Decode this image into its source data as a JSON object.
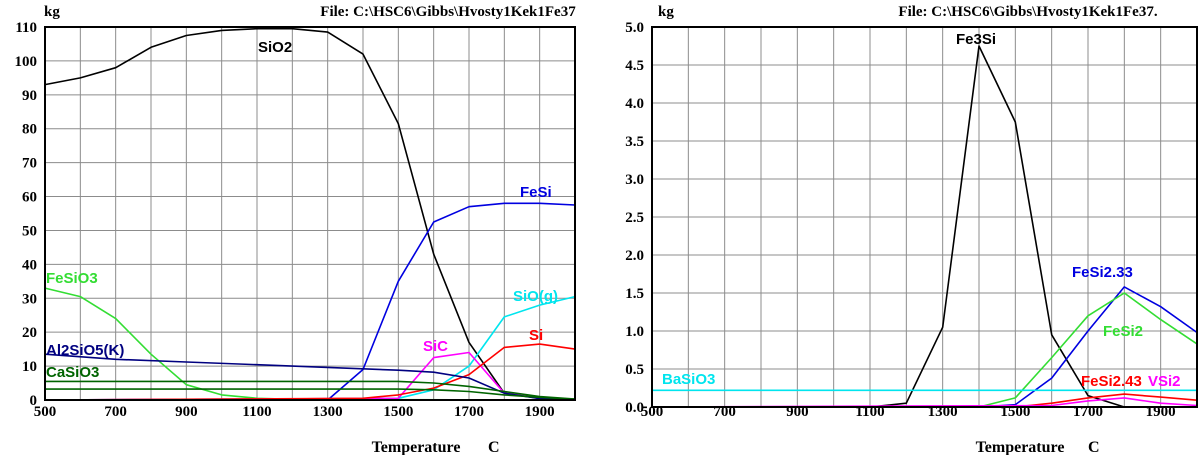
{
  "chart_data": [
    {
      "type": "line",
      "ylabel": "kg",
      "file_label": "File: C:\\HSC6\\Gibbs\\Hvosty1Kek1Fe37",
      "xlabel": "Temperature",
      "xunit": "C",
      "xlim": [
        500,
        2000
      ],
      "ylim": [
        0,
        110
      ],
      "xticks": [
        500,
        700,
        900,
        1100,
        1300,
        1500,
        1700,
        1900
      ],
      "yticks": [
        0,
        10,
        20,
        30,
        40,
        50,
        60,
        70,
        80,
        90,
        100,
        110
      ],
      "xgrid": [
        500,
        600,
        700,
        800,
        900,
        1000,
        1100,
        1200,
        1300,
        1400,
        1500,
        1600,
        1700,
        1800,
        1900,
        2000
      ],
      "grid": true,
      "series": [
        {
          "name": "SiO2",
          "color": "#000000",
          "x": [
            500,
            600,
            700,
            800,
            900,
            1000,
            1100,
            1200,
            1300,
            1400,
            1500,
            1600,
            1700,
            1800,
            1900,
            2000
          ],
          "y": [
            93,
            95,
            98,
            104,
            107.5,
            109,
            109.5,
            109.5,
            108.5,
            102,
            81.5,
            43,
            17,
            2,
            0.5,
            0.3
          ]
        },
        {
          "name": "FeSi",
          "color": "#0000e0",
          "x": [
            500,
            1300,
            1400,
            1500,
            1600,
            1700,
            1800,
            1900,
            2000
          ],
          "y": [
            0,
            0,
            9,
            35,
            52.5,
            57,
            58,
            58,
            57.5
          ]
        },
        {
          "name": "FeSiO3",
          "color": "#33dd33",
          "x": [
            500,
            600,
            700,
            800,
            900,
            1000,
            1100,
            1200,
            1500,
            2000
          ],
          "y": [
            33,
            30.5,
            24,
            13.5,
            4.5,
            1.5,
            0.5,
            0.2,
            0.1,
            0
          ]
        },
        {
          "name": "SiO(g)",
          "color": "#00e5ee",
          "x": [
            500,
            1500,
            1600,
            1700,
            1800,
            1900,
            2000
          ],
          "y": [
            0,
            0.5,
            3,
            10,
            24.5,
            28,
            30.5
          ]
        },
        {
          "name": "SiC",
          "color": "#ff00ff",
          "x": [
            500,
            1500,
            1600,
            1700,
            1800,
            1900,
            2000
          ],
          "y": [
            0,
            0.5,
            12.5,
            14,
            2,
            0.5,
            0.2
          ]
        },
        {
          "name": "Si",
          "color": "#ff0000",
          "x": [
            500,
            1400,
            1500,
            1600,
            1700,
            1800,
            1900,
            2000
          ],
          "y": [
            0,
            0.5,
            1.5,
            3.5,
            7.5,
            15.5,
            16.5,
            15
          ]
        },
        {
          "name": "Al2SiO5(K)",
          "color": "#000080",
          "x": [
            500,
            700,
            900,
            1100,
            1300,
            1500,
            1600,
            1700,
            1800,
            1900,
            2000
          ],
          "y": [
            13.5,
            12,
            11.2,
            10.4,
            9.6,
            8.8,
            8.2,
            6.5,
            2,
            0.4,
            0.1
          ]
        },
        {
          "name": "CaSiO3",
          "color": "#006400",
          "x": [
            500,
            1500,
            1600,
            1700,
            1800,
            1900,
            2000
          ],
          "y": [
            5.5,
            5.5,
            5,
            4,
            2.5,
            1,
            0.3
          ]
        },
        {
          "name": "",
          "color": "#006400",
          "x": [
            500,
            1500,
            1600,
            1700,
            1800,
            1900,
            2000
          ],
          "y": [
            3.2,
            3.2,
            3,
            2.5,
            1.5,
            0.8,
            0.2
          ]
        }
      ]
    },
    {
      "type": "line",
      "ylabel": "kg",
      "file_label": "File: C:\\HSC6\\Gibbs\\Hvosty1Kek1Fe37.",
      "xlabel": "Temperature",
      "xunit": "C",
      "xlim": [
        500,
        2000
      ],
      "ylim": [
        0,
        5
      ],
      "xticks": [
        500,
        700,
        900,
        1100,
        1300,
        1500,
        1700,
        1900
      ],
      "yticks": [
        "0.0",
        "0.5",
        "1.0",
        "1.5",
        "2.0",
        "2.5",
        "3.0",
        "3.5",
        "4.0",
        "4.5",
        "5.0"
      ],
      "xgrid": [
        500,
        600,
        700,
        800,
        900,
        1000,
        1100,
        1200,
        1300,
        1400,
        1500,
        1600,
        1700,
        1800,
        1900,
        2000
      ],
      "grid": true,
      "series": [
        {
          "name": "Fe3Si",
          "color": "#000000",
          "x": [
            500,
            1100,
            1200,
            1300,
            1400,
            1500,
            1600,
            1700,
            1800,
            2000
          ],
          "y": [
            0,
            0,
            0.05,
            1.05,
            4.75,
            3.75,
            0.95,
            0.15,
            0,
            0
          ]
        },
        {
          "name": "FeSi2.33",
          "color": "#0000e0",
          "x": [
            500,
            1400,
            1500,
            1600,
            1700,
            1800,
            1900,
            2000
          ],
          "y": [
            0,
            0,
            0.03,
            0.38,
            1.0,
            1.58,
            1.32,
            0.98
          ]
        },
        {
          "name": "FeSi2",
          "color": "#33dd33",
          "x": [
            500,
            1400,
            1500,
            1600,
            1700,
            1800,
            1900,
            2000
          ],
          "y": [
            0,
            0,
            0.12,
            0.65,
            1.2,
            1.5,
            1.15,
            0.83
          ]
        },
        {
          "name": "BaSiO3",
          "color": "#00e5ee",
          "x": [
            500,
            2000
          ],
          "y": [
            0.22,
            0.22
          ]
        },
        {
          "name": "FeSi2.43",
          "color": "#ff0000",
          "x": [
            500,
            1500,
            1600,
            1700,
            1800,
            1900,
            2000
          ],
          "y": [
            0,
            0,
            0.05,
            0.12,
            0.17,
            0.13,
            0.09
          ]
        },
        {
          "name": "VSi2",
          "color": "#ff00ff",
          "x": [
            500,
            1600,
            1700,
            1800,
            1900,
            2000
          ],
          "y": [
            0,
            0.02,
            0.08,
            0.12,
            0.05,
            0.02
          ]
        }
      ]
    }
  ]
}
